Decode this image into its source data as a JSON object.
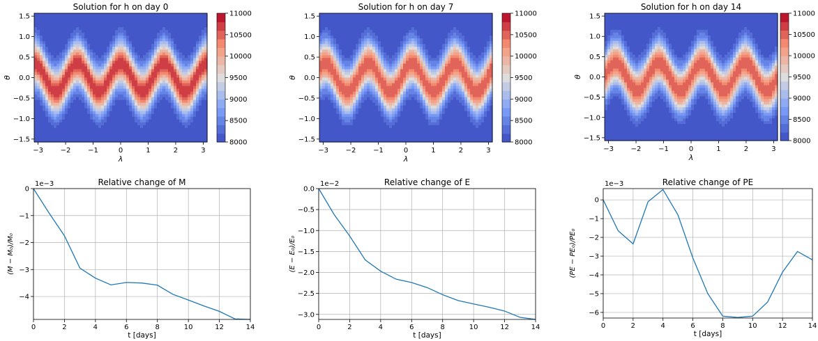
{
  "chart_data": [
    {
      "type": "heatmap",
      "title": "Solution for h on day 0",
      "xlabel": "λ",
      "ylabel": "θ",
      "xlim": [
        -3.14159,
        3.14159
      ],
      "ylim": [
        -1.5708,
        1.5708
      ],
      "xticks": [
        -3,
        -2,
        -1,
        0,
        1,
        2,
        3
      ],
      "yticks": [
        -1.5,
        -1.0,
        -0.5,
        0.0,
        0.5,
        1.0,
        1.5
      ],
      "ytick_labels": [
        "−1.5",
        "−1.0",
        "−0.5",
        "0.0",
        "0.5",
        "1.0",
        "1.5"
      ],
      "colorbar": {
        "min": 8000,
        "max": 11000,
        "ticks": [
          8000,
          8500,
          9000,
          9500,
          10000,
          10500,
          11000
        ]
      },
      "field": {
        "base": 8000,
        "amplitude": 2750,
        "wave_number": 4,
        "phase": 0,
        "wave_amplitude": 0.35
      },
      "colormap": "coolwarm"
    },
    {
      "type": "heatmap",
      "title": "Solution for h on day 7",
      "xlabel": "λ",
      "ylabel": "θ",
      "xlim": [
        -3.14159,
        3.14159
      ],
      "ylim": [
        -1.5708,
        1.5708
      ],
      "xticks": [
        -3,
        -2,
        -1,
        0,
        1,
        2,
        3
      ],
      "yticks": [
        -1.5,
        -1.0,
        -0.5,
        0.0,
        0.5,
        1.0,
        1.5
      ],
      "ytick_labels": [
        "−1.5",
        "−1.0",
        "−0.5",
        "0.0",
        "0.5",
        "1.0",
        "1.5"
      ],
      "colorbar": {
        "min": 8000,
        "max": 11000,
        "ticks": [
          8000,
          8500,
          9000,
          9500,
          10000,
          10500,
          11000
        ]
      },
      "field": {
        "base": 8000,
        "amplitude": 2600,
        "wave_number": 4,
        "phase": -0.9,
        "wave_amplitude": 0.35
      },
      "colormap": "coolwarm"
    },
    {
      "type": "heatmap",
      "title": "Solution for h on day 14",
      "xlabel": "λ",
      "ylabel": "θ",
      "xlim": [
        -3.14159,
        3.14159
      ],
      "ylim": [
        -1.5708,
        1.5708
      ],
      "xticks": [
        -3,
        -2,
        -1,
        0,
        1,
        2,
        3
      ],
      "yticks": [
        -1.5,
        -1.0,
        -0.5,
        0.0,
        0.5,
        1.0,
        1.5
      ],
      "ytick_labels": [
        "−1.5",
        "−1.0",
        "−0.5",
        "0.0",
        "0.5",
        "1.0",
        "1.5"
      ],
      "colorbar": {
        "min": 8000,
        "max": 11000,
        "ticks": [
          8000,
          8500,
          9000,
          9500,
          10000,
          10500,
          11000
        ]
      },
      "field": {
        "base": 8000,
        "amplitude": 2600,
        "wave_number": 4,
        "phase": -1.6,
        "wave_amplitude": 0.35
      },
      "colormap": "coolwarm"
    },
    {
      "type": "line",
      "title": "Relative change of M",
      "xlabel": "t [days]",
      "ylabel": "(M − M₀)/M₀",
      "offset_label": "1e−3",
      "xlim": [
        0,
        14
      ],
      "ylim": [
        -4.85,
        0
      ],
      "xticks": [
        0,
        2,
        4,
        6,
        8,
        10,
        12,
        14
      ],
      "yticks": [
        -4,
        -3,
        -2,
        -1,
        0
      ],
      "ytick_labels": [
        "−4",
        "−3",
        "−2",
        "−1",
        "0"
      ],
      "grid": true,
      "color": "#1f77b4",
      "x": [
        0,
        1,
        2,
        3,
        4,
        5,
        6,
        7,
        8,
        9,
        10,
        11,
        12,
        13,
        14
      ],
      "y": [
        0,
        -0.9,
        -1.75,
        -2.95,
        -3.32,
        -3.57,
        -3.48,
        -3.5,
        -3.58,
        -3.92,
        -4.13,
        -4.35,
        -4.55,
        -4.83,
        -4.85
      ]
    },
    {
      "type": "line",
      "title": "Relative change of E",
      "xlabel": "t [days]",
      "ylabel": "(E − E₀)/E₀",
      "offset_label": "1e−2",
      "xlim": [
        0,
        14
      ],
      "ylim": [
        -3.12,
        0
      ],
      "xticks": [
        0,
        2,
        4,
        6,
        8,
        10,
        12,
        14
      ],
      "yticks": [
        -3.0,
        -2.5,
        -2.0,
        -1.5,
        -1.0,
        -0.5,
        0.0
      ],
      "ytick_labels": [
        "−3.0",
        "−2.5",
        "−2.0",
        "−1.5",
        "−1.0",
        "−0.5",
        "0.0"
      ],
      "grid": true,
      "color": "#1f77b4",
      "x": [
        0,
        1,
        2,
        3,
        4,
        5,
        6,
        7,
        8,
        9,
        10,
        11,
        12,
        13,
        14
      ],
      "y": [
        0,
        -0.62,
        -1.13,
        -1.7,
        -1.97,
        -2.16,
        -2.24,
        -2.36,
        -2.53,
        -2.67,
        -2.75,
        -2.83,
        -2.92,
        -3.07,
        -3.12
      ]
    },
    {
      "type": "line",
      "title": "Relative change of PE",
      "xlabel": "t [days]",
      "ylabel": "(PE − PE₀)/PE₀",
      "offset_label": "1e−3",
      "xlim": [
        0,
        14
      ],
      "ylim": [
        -6.3,
        0.6
      ],
      "xticks": [
        0,
        2,
        4,
        6,
        8,
        10,
        12,
        14
      ],
      "yticks": [
        -6,
        -5,
        -4,
        -3,
        -2,
        -1,
        0
      ],
      "ytick_labels": [
        "−6",
        "−5",
        "−4",
        "−3",
        "−2",
        "−1",
        "0"
      ],
      "grid": true,
      "color": "#1f77b4",
      "x": [
        0,
        1,
        2,
        3,
        4,
        5,
        6,
        7,
        8,
        9,
        10,
        11,
        12,
        13,
        14
      ],
      "y": [
        0,
        -1.65,
        -2.35,
        -0.1,
        0.55,
        -0.8,
        -3.1,
        -5.0,
        -6.2,
        -6.27,
        -6.2,
        -5.45,
        -3.85,
        -2.75,
        -3.2
      ]
    }
  ]
}
